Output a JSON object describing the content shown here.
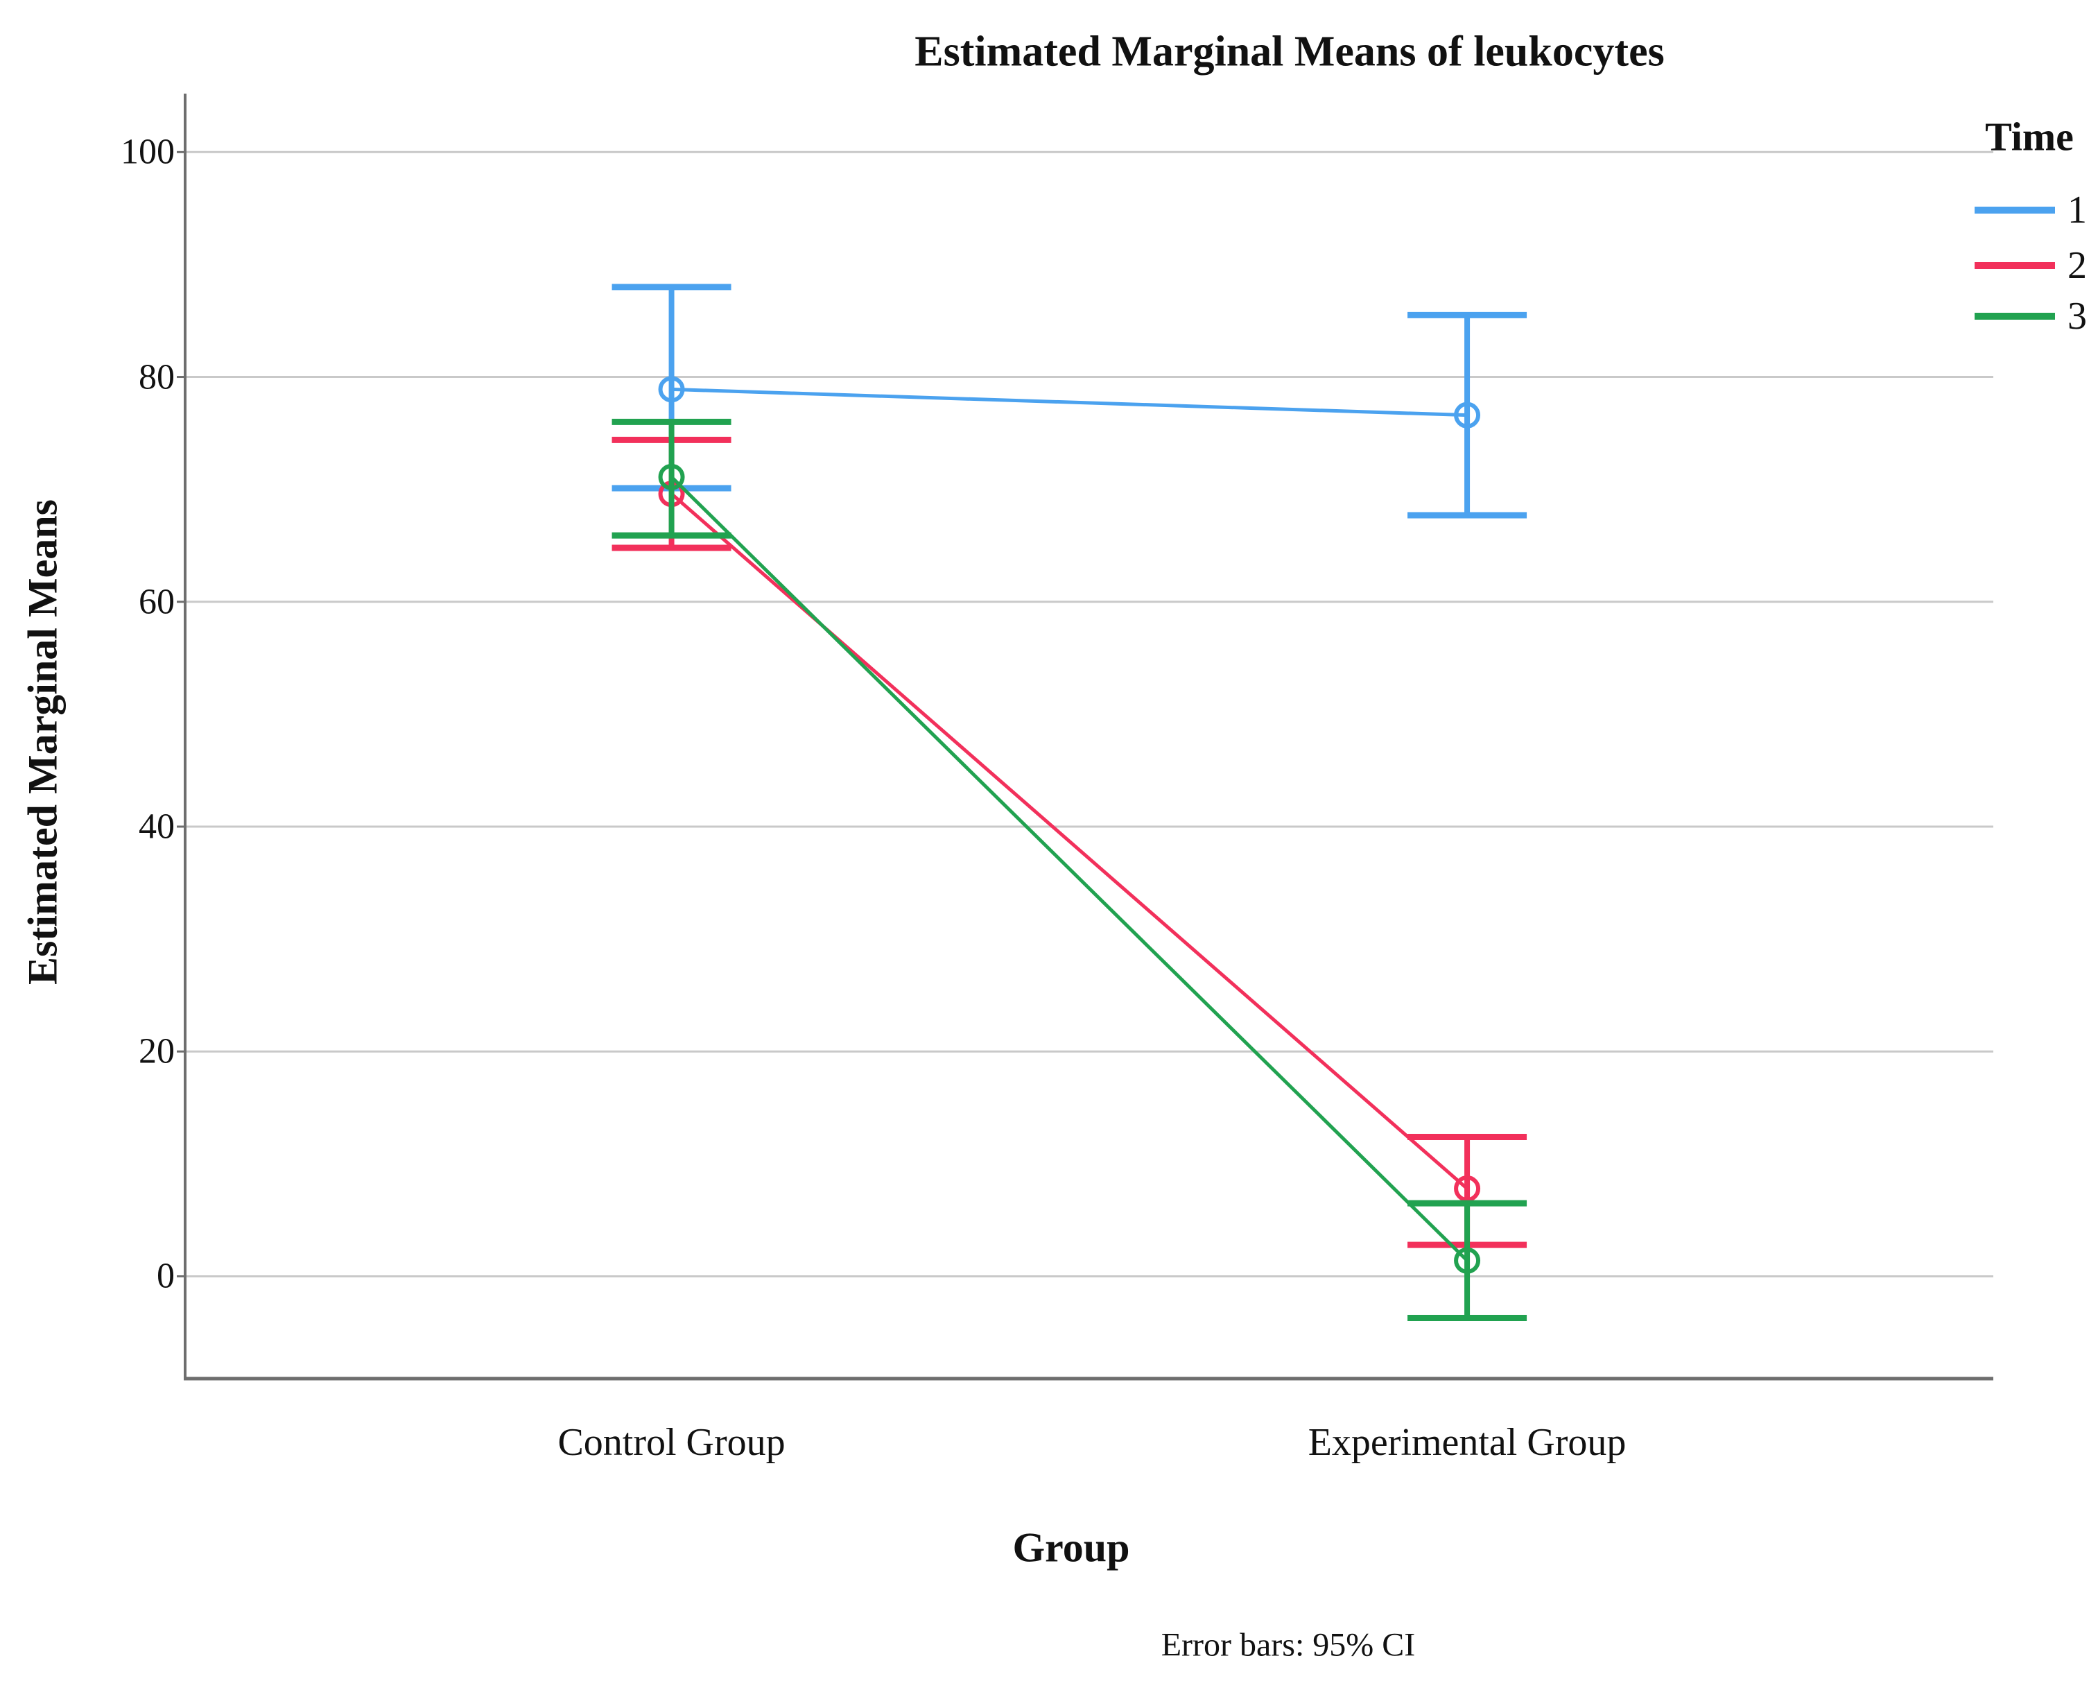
{
  "figure": {
    "background": "#ffffff"
  },
  "title": "Estimated Marginal Means of leukocytes",
  "y_axis": {
    "title": "Estimated Marginal Means"
  },
  "x_axis": {
    "title": "Group"
  },
  "caption": "Error bars: 95% CI",
  "legend": {
    "title": "Time",
    "entries": [
      "1",
      "2",
      "3"
    ]
  },
  "colors": {
    "series1_blue": "#4BA2EF",
    "series2_red": "#F2305B",
    "series3_green": "#21A250",
    "gridline": "#c9c9c9",
    "axis": "#6e6e6e",
    "text": "#111111"
  },
  "chart_data": {
    "type": "line",
    "subtype": "estimated-marginal-means-with-error-bars",
    "categories": [
      "Control Group",
      "Experimental Group"
    ],
    "series": [
      {
        "name": "1",
        "color": "#4BA2EF",
        "means": [
          78.9,
          76.6
        ],
        "ci_low": [
          70.1,
          67.7
        ],
        "ci_high": [
          88.0,
          85.5
        ]
      },
      {
        "name": "2",
        "color": "#F2305B",
        "means": [
          69.6,
          7.8
        ],
        "ci_low": [
          64.8,
          2.8
        ],
        "ci_high": [
          74.4,
          12.4
        ]
      },
      {
        "name": "3",
        "color": "#21A250",
        "means": [
          71.1,
          1.4
        ],
        "ci_low": [
          65.9,
          -3.7
        ],
        "ci_high": [
          76.0,
          6.5
        ]
      }
    ],
    "xlabel": "Group",
    "ylabel": "Estimated Marginal Means",
    "yticks": [
      0,
      20,
      40,
      60,
      80,
      100
    ],
    "ylim": [
      -9.1,
      105.2
    ],
    "grid": true,
    "legend_position": "right",
    "legend_title": "Time",
    "error_bars": "95% CI"
  }
}
